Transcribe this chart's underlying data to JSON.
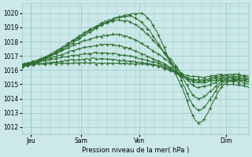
{
  "title": "Pression niveau de la mer( hPa )",
  "bg_color": "#cce8e8",
  "grid_color": "#99cccc",
  "line_color": "#2d6e2d",
  "ylim": [
    1011.5,
    1020.7
  ],
  "yticks": [
    1012,
    1013,
    1014,
    1015,
    1016,
    1017,
    1018,
    1019,
    1020
  ],
  "xtick_labels": [
    "Jeu",
    "Sam",
    "Ven",
    "Dim"
  ],
  "xtick_positions": [
    0.04,
    0.26,
    0.52,
    0.9
  ],
  "figsize": [
    3.2,
    2.0
  ],
  "dpi": 100,
  "series": [
    {
      "key_x": [
        0.0,
        0.05,
        0.52,
        0.7,
        0.78,
        0.9,
        1.0
      ],
      "key_y": [
        1016.3,
        1016.5,
        1020.0,
        1015.0,
        1012.3,
        1015.0,
        1014.8
      ]
    },
    {
      "key_x": [
        0.0,
        0.05,
        0.47,
        0.68,
        0.78,
        0.9,
        1.0
      ],
      "key_y": [
        1016.4,
        1016.6,
        1019.8,
        1016.0,
        1013.2,
        1015.2,
        1015.0
      ]
    },
    {
      "key_x": [
        0.0,
        0.05,
        0.44,
        0.67,
        0.78,
        0.9,
        1.0
      ],
      "key_y": [
        1016.3,
        1016.5,
        1019.5,
        1016.5,
        1014.0,
        1015.3,
        1015.2
      ]
    },
    {
      "key_x": [
        0.0,
        0.05,
        0.41,
        0.65,
        0.78,
        0.9,
        1.0
      ],
      "key_y": [
        1016.4,
        1016.6,
        1018.5,
        1016.6,
        1014.8,
        1015.3,
        1015.2
      ]
    },
    {
      "key_x": [
        0.0,
        0.05,
        0.38,
        0.62,
        0.78,
        0.9,
        1.0
      ],
      "key_y": [
        1016.3,
        1016.5,
        1017.8,
        1016.5,
        1015.1,
        1015.4,
        1015.3
      ]
    },
    {
      "key_x": [
        0.0,
        0.05,
        0.35,
        0.6,
        0.78,
        0.9,
        1.0
      ],
      "key_y": [
        1016.3,
        1016.5,
        1017.2,
        1016.5,
        1015.2,
        1015.5,
        1015.4
      ]
    },
    {
      "key_x": [
        0.0,
        0.05,
        0.32,
        0.58,
        0.78,
        0.9,
        1.0
      ],
      "key_y": [
        1016.3,
        1016.4,
        1016.8,
        1016.4,
        1015.3,
        1015.6,
        1015.5
      ]
    },
    {
      "key_x": [
        0.0,
        0.05,
        0.3,
        0.56,
        0.78,
        0.9,
        1.0
      ],
      "key_y": [
        1016.2,
        1016.4,
        1016.5,
        1016.4,
        1015.5,
        1015.7,
        1015.6
      ]
    }
  ]
}
